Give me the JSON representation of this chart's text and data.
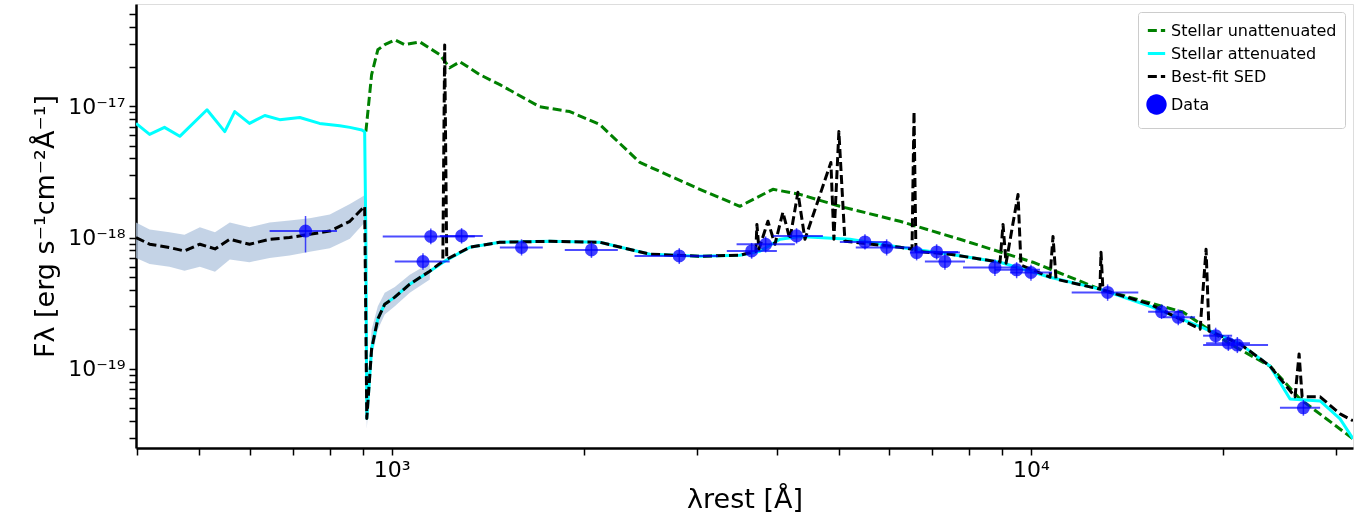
{
  "chart_data": {
    "type": "line",
    "xlabel": "λrest [Å]",
    "ylabel": "Fλ [erg s⁻¹cm⁻²Å⁻¹]",
    "log": "xy",
    "grid": false,
    "legend": "top right",
    "xlim": [
      398,
      31900
    ],
    "ylim": [
      2.5e-20,
      6e-17
    ],
    "xticks": [
      {
        "value": 400,
        "label": null
      },
      {
        "value": 500,
        "label": null
      },
      {
        "value": 600,
        "label": null
      },
      {
        "value": 700,
        "label": null
      },
      {
        "value": 800,
        "label": null
      },
      {
        "value": 900,
        "label": null
      },
      {
        "value": 1000,
        "label": "10³"
      },
      {
        "value": 2000,
        "label": null
      },
      {
        "value": 3000,
        "label": null
      },
      {
        "value": 4000,
        "label": null
      },
      {
        "value": 5000,
        "label": null
      },
      {
        "value": 6000,
        "label": null
      },
      {
        "value": 7000,
        "label": null
      },
      {
        "value": 8000,
        "label": null
      },
      {
        "value": 9000,
        "label": null
      },
      {
        "value": 10000,
        "label": "10⁴"
      },
      {
        "value": 20000,
        "label": null
      },
      {
        "value": 30000,
        "label": null
      }
    ],
    "yticks": [
      {
        "value": 3e-20,
        "label": null
      },
      {
        "value": 4e-20,
        "label": null
      },
      {
        "value": 5e-20,
        "label": null
      },
      {
        "value": 6e-20,
        "label": null
      },
      {
        "value": 7e-20,
        "label": null
      },
      {
        "value": 8e-20,
        "label": null
      },
      {
        "value": 9e-20,
        "label": null
      },
      {
        "value": 1e-19,
        "label": "10⁻¹⁹"
      },
      {
        "value": 2e-19,
        "label": null
      },
      {
        "value": 3e-19,
        "label": null
      },
      {
        "value": 4e-19,
        "label": null
      },
      {
        "value": 5e-19,
        "label": null
      },
      {
        "value": 6e-19,
        "label": null
      },
      {
        "value": 7e-19,
        "label": null
      },
      {
        "value": 8e-19,
        "label": null
      },
      {
        "value": 9e-19,
        "label": null
      },
      {
        "value": 1e-18,
        "label": "10⁻¹⁸"
      },
      {
        "value": 2e-18,
        "label": null
      },
      {
        "value": 3e-18,
        "label": null
      },
      {
        "value": 4e-18,
        "label": null
      },
      {
        "value": 5e-18,
        "label": null
      },
      {
        "value": 6e-18,
        "label": null
      },
      {
        "value": 7e-18,
        "label": null
      },
      {
        "value": 8e-18,
        "label": null
      },
      {
        "value": 9e-18,
        "label": null
      },
      {
        "value": 1e-17,
        "label": "10⁻¹⁷"
      },
      {
        "value": 2e-17,
        "label": null
      },
      {
        "value": 3e-17,
        "label": null
      },
      {
        "value": 4e-17,
        "label": null
      },
      {
        "value": 5e-17,
        "label": null
      }
    ],
    "series": [
      {
        "name": "Stellar unattenuated",
        "type": "line",
        "line_style": "dashed",
        "color": "#008000",
        "x": [
          911,
          930,
          951,
          975,
          1011,
          1048,
          1106,
          1189,
          1232,
          1278,
          1373,
          1476,
          1704,
          1899,
          2116,
          2444,
          3034,
          3504,
          3947,
          4350,
          5024,
          6237,
          7743,
          10070,
          12820,
          17290,
          20480,
          23660,
          26360,
          31900
        ],
        "values": [
          6.4e-18,
          1.74e-17,
          2.69e-17,
          2.94e-17,
          3.2e-17,
          2.94e-17,
          3.09e-17,
          2.47e-17,
          1.96e-17,
          2.18e-17,
          1.74e-17,
          1.46e-17,
          9.9e-18,
          9.1e-18,
          7.25e-18,
          3.73e-18,
          2.33e-18,
          1.73e-18,
          2.33e-18,
          2.13e-18,
          1.73e-18,
          1.33e-18,
          9.7e-19,
          6.49e-19,
          4.05e-19,
          2.71e-19,
          1.55e-19,
          1.05e-19,
          5.9e-20,
          2.94e-20
        ]
      },
      {
        "name": "Stellar attenuated",
        "type": "line",
        "line_style": "solid",
        "color": "#00ffff",
        "x": [
          398,
          418,
          441,
          466,
          514,
          548,
          568,
          599,
          633,
          668,
          718,
          771,
          829,
          860,
          898,
          907,
          911,
          914,
          930,
          951,
          975,
          1011,
          1067,
          1147,
          1210,
          1325,
          1476,
          1767,
          2116,
          2534,
          3034,
          3504,
          3766,
          4048,
          4350,
          5210,
          6237,
          7468,
          8945,
          10710,
          12820,
          15360,
          18390,
          21240,
          23660,
          25430,
          28340,
          30450,
          31900
        ],
        "values": [
          7.4e-18,
          6.1e-18,
          6.9e-18,
          5.9e-18,
          9.4e-18,
          6.4e-18,
          9.1e-18,
          7.4e-18,
          8.5e-18,
          7.9e-18,
          8.2e-18,
          7.4e-18,
          7.1e-18,
          6.9e-18,
          6.6e-18,
          6.4e-18,
          9.7e-19,
          4.2e-20,
          1.42e-19,
          2.4e-19,
          3.11e-19,
          3.52e-19,
          4.42e-19,
          5.55e-19,
          6.61e-19,
          8.44e-19,
          9.21e-19,
          9.37e-19,
          9.21e-19,
          7.47e-19,
          7.21e-19,
          7.34e-19,
          7.87e-19,
          9.7e-19,
          1.02e-18,
          9.7e-19,
          8.44e-19,
          7.47e-19,
          6.49e-19,
          4.99e-19,
          4.05e-19,
          3e-19,
          2.1e-19,
          1.55e-19,
          1.05e-19,
          5.9e-20,
          5.7e-20,
          4.17e-20,
          2.94e-20
        ]
      },
      {
        "name": "Best-fit SED",
        "type": "line",
        "line_style": "dashed",
        "color": "#000000",
        "x": [
          398,
          418,
          449,
          474,
          501,
          529,
          558,
          599,
          644,
          692,
          744,
          800,
          860,
          907,
          914,
          930,
          951,
          975,
          1011,
          1067,
          1147,
          1202,
          1210,
          1219,
          1325,
          1476,
          1767,
          2116,
          2534,
          3034,
          3504,
          3712,
          3726,
          3753,
          3877,
          3976,
          4092,
          4196,
          4319,
          4430,
          4864,
          4917,
          5006,
          5116,
          6237,
          6515,
          6562,
          6607,
          7468,
          8945,
          9042,
          9141,
          9544,
          9647,
          10710,
          10826,
          10944,
          12820,
          12870,
          12960,
          15360,
          18390,
          18790,
          18990,
          21240,
          23660,
          25890,
          26270,
          26560,
          28340,
          30450,
          31900
        ],
        "values": [
          1e-18,
          8.9e-19,
          8.4e-19,
          7.9e-19,
          8.9e-19,
          8.2e-19,
          9.7e-19,
          8.9e-19,
          9.7e-19,
          1e-18,
          1.06e-18,
          1.12e-18,
          1.33e-18,
          1.73e-18,
          4.2e-20,
          1.42e-19,
          2.4e-19,
          3.11e-19,
          3.52e-19,
          4.42e-19,
          5.55e-19,
          6.61e-19,
          2.93e-17,
          6.84e-19,
          8.44e-19,
          9.21e-19,
          9.37e-19,
          9.21e-19,
          7.47e-19,
          7.21e-19,
          7.34e-19,
          7.87e-19,
          1.26e-18,
          8.15e-19,
          1.33e-18,
          8.89e-19,
          1.56e-18,
          9.7e-19,
          2.21e-18,
          9.7e-19,
          3.73e-18,
          9.7e-19,
          6.41e-18,
          9.37e-19,
          8.44e-19,
          8.15e-19,
          9.1e-18,
          7.87e-19,
          7.47e-19,
          6.49e-19,
          1.26e-18,
          6.38e-19,
          2.13e-18,
          6.16e-19,
          4.99e-19,
          1.02e-18,
          4.82e-19,
          4.05e-19,
          7.73e-19,
          3.98e-19,
          3.11e-19,
          2.01e-19,
          8.15e-19,
          1.94e-19,
          1.55e-19,
          1.05e-19,
          6.13e-20,
          1.3e-19,
          6.13e-20,
          6.13e-20,
          4.55e-20,
          4.03e-20
        ],
        "lower": [
          7e-19,
          6.3e-19,
          6e-19,
          5.6e-19,
          6e-19,
          5.5e-19,
          6.8e-19,
          6.5e-19,
          7e-19,
          7.3e-19,
          7.8e-19,
          8.3e-19,
          9.8e-19,
          1.3e-18,
          3.5e-20,
          1.2e-19,
          2e-19,
          2.6e-19,
          3e-19,
          3.8e-19,
          4.8e-19,
          null,
          null,
          null,
          null,
          null,
          null,
          null,
          null,
          null,
          null,
          null,
          null,
          null,
          null,
          null,
          null,
          null,
          null,
          null,
          null,
          null,
          null,
          null,
          null,
          null,
          null,
          null,
          null,
          null,
          null,
          null,
          null,
          null,
          null,
          null,
          null,
          null,
          null,
          null,
          null,
          null,
          null,
          null,
          null,
          null,
          null,
          null,
          null,
          null,
          null,
          null
        ],
        "upper": [
          1.3e-18,
          1.15e-18,
          1.1e-18,
          1.05e-18,
          1.2e-18,
          1.1e-18,
          1.3e-18,
          1.2e-18,
          1.3e-18,
          1.35e-18,
          1.4e-18,
          1.5e-18,
          1.8e-18,
          2.1e-18,
          5.5e-20,
          2e-19,
          3e-19,
          3.8e-19,
          4.2e-19,
          5.2e-19,
          6.4e-19,
          null,
          null,
          null,
          null,
          null,
          null,
          null,
          null,
          null,
          null,
          null,
          null,
          null,
          null,
          null,
          null,
          null,
          null,
          null,
          null,
          null,
          null,
          null,
          null,
          null,
          null,
          null,
          null,
          null,
          null,
          null,
          null,
          null,
          null,
          null,
          null,
          null,
          null,
          null,
          null,
          null,
          null,
          null,
          null,
          null,
          null,
          null,
          null,
          null,
          null,
          null
        ]
      },
      {
        "name": "Data",
        "type": "scatter",
        "marker": "circle",
        "color": "#0000ff",
        "x": [
          733,
          1119,
          1151,
          1286,
          1596,
          2053,
          2817,
          3656,
          3845,
          4298,
          5499,
          5946,
          6624,
          7119,
          7335,
          8782,
          9497,
          10000,
          13180,
          16010,
          17000,
          19450,
          20360,
          21030,
          26680
        ],
        "values": [
          1.12e-18,
          6.57e-19,
          1.02e-18,
          1.03e-18,
          8.4e-19,
          8.05e-19,
          7.25e-19,
          7.91e-19,
          8.89e-19,
          1.03e-18,
          9.26e-19,
          8.4e-19,
          7.69e-19,
          7.77e-19,
          6.57e-19,
          5.92e-19,
          5.68e-19,
          5.42e-19,
          3.82e-19,
          2.72e-19,
          2.47e-19,
          1.79e-19,
          1.57e-19,
          1.52e-19,
          5.06e-20
        ],
        "errors": [
          [
            7.7e-19,
            1.46e-18
          ],
          [
            5.7e-19,
            7.6e-19
          ],
          [
            8.9e-19,
            1.17e-18
          ],
          [
            9e-19,
            1.18e-18
          ],
          [
            7.3e-19,
            9.7e-19
          ],
          [
            7e-19,
            9.3e-19
          ],
          [
            6.3e-19,
            8.3e-19
          ],
          [
            6.9e-19,
            9.1e-19
          ],
          [
            7.7e-19,
            1.02e-18
          ],
          [
            9e-19,
            1.18e-18
          ],
          [
            8.1e-19,
            1.06e-18
          ],
          [
            7.3e-19,
            9.7e-19
          ],
          [
            6.7e-19,
            8.8e-19
          ],
          [
            6.8e-19,
            8.9e-19
          ],
          [
            5.7e-19,
            7.6e-19
          ],
          [
            5.1e-19,
            6.8e-19
          ],
          [
            4.9e-19,
            6.5e-19
          ],
          [
            4.7e-19,
            6.2e-19
          ],
          [
            3.3e-19,
            4.4e-19
          ],
          [
            2.4e-19,
            3.1e-19
          ],
          [
            2.15e-19,
            2.84e-19
          ],
          [
            1.56e-19,
            2.06e-19
          ],
          [
            1.37e-19,
            1.8e-19
          ],
          [
            1.32e-19,
            1.75e-19
          ],
          [
            4.4e-20,
            5.8e-20
          ]
        ],
        "xerrors": [
          [
            644,
            821
          ],
          [
            1011,
            1232
          ],
          [
            968,
            1349
          ],
          [
            1189,
            1388
          ],
          [
            1476,
            1723
          ],
          [
            1865,
            2258
          ],
          [
            2398,
            3237
          ],
          [
            3343,
            4004
          ],
          [
            3463,
            4272
          ],
          [
            3947,
            4726
          ],
          [
            5024,
            5952
          ],
          [
            5320,
            6466
          ],
          [
            6466,
            7743
          ],
          [
            6584,
            7689
          ],
          [
            6824,
            7885
          ],
          [
            7829,
            9508
          ],
          [
            8782,
            10330
          ],
          [
            9271,
            10790
          ],
          [
            11580,
            14720
          ],
          [
            15250,
            17290
          ],
          [
            16090,
            18060
          ],
          [
            18590,
            20640
          ],
          [
            18790,
            22010
          ],
          [
            18590,
            23490
          ],
          [
            24520,
            28340
          ]
        ]
      }
    ]
  }
}
